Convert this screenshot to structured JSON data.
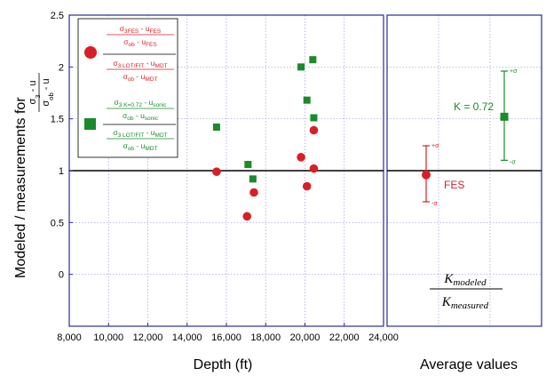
{
  "colors": {
    "red": "#d91f26",
    "green": "#1a8a2a",
    "axis": "#2a2aa0",
    "grid": "#9a9ad8",
    "ref": "#000000"
  },
  "chart_data": [
    {
      "type": "scatter",
      "xlabel": "Depth (ft)",
      "ylabel": "Modeled / measurements for",
      "ylabel_fraction": {
        "numerator": "σ3 - u",
        "denominator": "σob - u"
      },
      "xlim": [
        8000,
        24000
      ],
      "ylim": [
        -0.5,
        2.5
      ],
      "x_ticks": [
        "8,000",
        "10,000",
        "12,000",
        "14,000",
        "16,000",
        "18,000",
        "20,000",
        "22,000",
        "24,000"
      ],
      "y_ticks": [
        "2.5",
        "2",
        "1.5",
        "1",
        "0.5",
        "0"
      ],
      "grid": true,
      "reference_line_y": 1,
      "legend_placement": "top-left",
      "legend": [
        {
          "marker": "circle",
          "color": "#d91f26",
          "line1": {
            "num": "σ3FES - uFES",
            "den": "σob - uFES"
          },
          "line2": {
            "num": "σ3 LOT/FIT - uMDT",
            "den": "σob - uMDT"
          }
        },
        {
          "marker": "square",
          "color": "#1a8a2a",
          "line1": {
            "num": "σ3 K=0.72 - usonic",
            "den": "σob - usonic"
          },
          "line2": {
            "num": "σ3 LOT/FIT - uMDT",
            "den": "σob - uMDT"
          }
        }
      ],
      "series": [
        {
          "marker": "circle",
          "color": "#d91f26",
          "x": [
            15500,
            17050,
            17400,
            19800,
            20100,
            20450,
            20450
          ],
          "y": [
            0.99,
            0.56,
            0.79,
            1.13,
            0.85,
            1.02,
            1.39
          ]
        },
        {
          "marker": "square",
          "color": "#1a8a2a",
          "x": [
            15500,
            17100,
            17350,
            19800,
            20100,
            20400,
            20450
          ],
          "y": [
            1.42,
            1.06,
            0.92,
            2.0,
            1.68,
            2.07,
            1.51
          ]
        }
      ]
    },
    {
      "type": "scatter",
      "xlabel": "Average values",
      "ylim": [
        -0.5,
        2.5
      ],
      "grid": true,
      "reference_line_y": 1,
      "formula": {
        "num": "Kmodeled",
        "den": "Kmeasured"
      },
      "points": [
        {
          "label": "FES",
          "color": "#d91f26",
          "marker": "circle",
          "y": 0.96,
          "plus": 1.24,
          "minus": 0.7,
          "plus_label": "+σ",
          "minus_label": "-σ"
        },
        {
          "label": "K = 0.72",
          "color": "#1a8a2a",
          "marker": "square",
          "y": 1.52,
          "plus": 1.96,
          "minus": 1.1,
          "plus_label": "+σ",
          "minus_label": "-σ"
        }
      ]
    }
  ]
}
